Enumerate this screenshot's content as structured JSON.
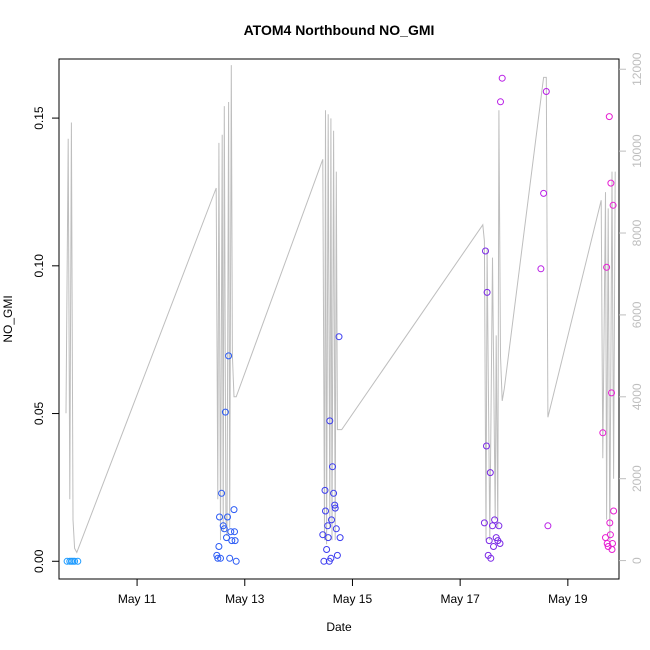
{
  "chart_data": {
    "type": "scatter",
    "title": "ATOM4 Northbound NO_GMI",
    "xlabel": "Date",
    "ylabel": "NO_GMI",
    "x_ticks": [
      "May 11",
      "May 13",
      "May 15",
      "May 17",
      "May 19"
    ],
    "y_ticks": [
      "0.00",
      "0.05",
      "0.10",
      "0.15"
    ],
    "y2_ticks": [
      "0",
      "2000",
      "4000",
      "6000",
      "8000",
      "10000",
      "12000"
    ],
    "xlim_days": [
      9.55,
      19.95
    ],
    "ylim": [
      -0.006,
      0.17
    ],
    "y2lim": [
      -450,
      12250
    ],
    "colors": {
      "altitude_line": "#bebebe",
      "right_axis": "#bebebe",
      "axis": "#000000"
    },
    "points": [
      {
        "x": 9.7,
        "y": 0.0,
        "c": "#1e9bff"
      },
      {
        "x": 9.75,
        "y": 0.0,
        "c": "#1e9bff"
      },
      {
        "x": 9.78,
        "y": 0.0,
        "c": "#1e9bff"
      },
      {
        "x": 9.81,
        "y": 0.0,
        "c": "#1e9bff"
      },
      {
        "x": 9.84,
        "y": 0.0,
        "c": "#1e9bff"
      },
      {
        "x": 9.9,
        "y": 0.0,
        "c": "#1e9bff"
      },
      {
        "x": 12.48,
        "y": 0.002,
        "c": "#2a5af5"
      },
      {
        "x": 12.5,
        "y": 0.001,
        "c": "#2a5af5"
      },
      {
        "x": 12.52,
        "y": 0.005,
        "c": "#2a5af5"
      },
      {
        "x": 12.53,
        "y": 0.015,
        "c": "#2a5af5"
      },
      {
        "x": 12.55,
        "y": 0.001,
        "c": "#2a5af5"
      },
      {
        "x": 12.57,
        "y": 0.023,
        "c": "#2a5af5"
      },
      {
        "x": 12.6,
        "y": 0.012,
        "c": "#2a5af5"
      },
      {
        "x": 12.62,
        "y": 0.011,
        "c": "#2a5af5"
      },
      {
        "x": 12.64,
        "y": 0.0505,
        "c": "#2a5af5"
      },
      {
        "x": 12.66,
        "y": 0.008,
        "c": "#2a5af5"
      },
      {
        "x": 12.68,
        "y": 0.015,
        "c": "#2a5af5"
      },
      {
        "x": 12.7,
        "y": 0.0695,
        "c": "#2a5af5"
      },
      {
        "x": 12.72,
        "y": 0.001,
        "c": "#2a5af5"
      },
      {
        "x": 12.74,
        "y": 0.01,
        "c": "#2a5af5"
      },
      {
        "x": 12.76,
        "y": 0.007,
        "c": "#2a5af5"
      },
      {
        "x": 12.8,
        "y": 0.0175,
        "c": "#2a5af5"
      },
      {
        "x": 12.81,
        "y": 0.01,
        "c": "#2a5af5"
      },
      {
        "x": 12.82,
        "y": 0.007,
        "c": "#2a5af5"
      },
      {
        "x": 12.84,
        "y": 0.0,
        "c": "#2a5af5"
      },
      {
        "x": 14.45,
        "y": 0.009,
        "c": "#3c3cf0"
      },
      {
        "x": 14.47,
        "y": 0.0,
        "c": "#3c3cf0"
      },
      {
        "x": 14.49,
        "y": 0.024,
        "c": "#3c3cf0"
      },
      {
        "x": 14.5,
        "y": 0.017,
        "c": "#3c3cf0"
      },
      {
        "x": 14.52,
        "y": 0.004,
        "c": "#3c3cf0"
      },
      {
        "x": 14.54,
        "y": 0.012,
        "c": "#3c3cf0"
      },
      {
        "x": 14.55,
        "y": 0.008,
        "c": "#3c3cf0"
      },
      {
        "x": 14.57,
        "y": 0.0,
        "c": "#3c3cf0"
      },
      {
        "x": 14.58,
        "y": 0.0475,
        "c": "#3c3cf0"
      },
      {
        "x": 14.6,
        "y": 0.001,
        "c": "#3c3cf0"
      },
      {
        "x": 14.61,
        "y": 0.014,
        "c": "#3c3cf0"
      },
      {
        "x": 14.63,
        "y": 0.032,
        "c": "#3c3cf0"
      },
      {
        "x": 14.65,
        "y": 0.023,
        "c": "#3c3cf0"
      },
      {
        "x": 14.67,
        "y": 0.019,
        "c": "#3c3cf0"
      },
      {
        "x": 14.68,
        "y": 0.018,
        "c": "#3c3cf0"
      },
      {
        "x": 14.7,
        "y": 0.011,
        "c": "#3c3cf0"
      },
      {
        "x": 14.72,
        "y": 0.002,
        "c": "#3c3cf0"
      },
      {
        "x": 14.75,
        "y": 0.076,
        "c": "#3c3cf0"
      },
      {
        "x": 14.77,
        "y": 0.008,
        "c": "#3c3cf0"
      },
      {
        "x": 17.45,
        "y": 0.013,
        "c": "#7a28e6"
      },
      {
        "x": 17.47,
        "y": 0.105,
        "c": "#7a28e6"
      },
      {
        "x": 17.49,
        "y": 0.039,
        "c": "#7a28e6"
      },
      {
        "x": 17.5,
        "y": 0.091,
        "c": "#7a28e6"
      },
      {
        "x": 17.52,
        "y": 0.002,
        "c": "#7a28e6"
      },
      {
        "x": 17.54,
        "y": 0.007,
        "c": "#7a28e6"
      },
      {
        "x": 17.56,
        "y": 0.03,
        "c": "#7a28e6"
      },
      {
        "x": 17.57,
        "y": 0.001,
        "c": "#7a28e6"
      },
      {
        "x": 17.6,
        "y": 0.012,
        "c": "#7a28e6"
      },
      {
        "x": 17.62,
        "y": 0.005,
        "c": "#7a28e6"
      },
      {
        "x": 17.64,
        "y": 0.014,
        "c": "#7a28e6"
      },
      {
        "x": 17.67,
        "y": 0.008,
        "c": "#7a28e6"
      },
      {
        "x": 17.7,
        "y": 0.007,
        "c": "#7a28e6"
      },
      {
        "x": 17.72,
        "y": 0.012,
        "c": "#7a28e6"
      },
      {
        "x": 17.74,
        "y": 0.006,
        "c": "#7a28e6"
      },
      {
        "x": 17.75,
        "y": 0.1555,
        "c": "#b91fe6"
      },
      {
        "x": 17.78,
        "y": 0.1635,
        "c": "#b91fe6"
      },
      {
        "x": 18.5,
        "y": 0.099,
        "c": "#b91fe6"
      },
      {
        "x": 18.55,
        "y": 0.1245,
        "c": "#b91fe6"
      },
      {
        "x": 18.6,
        "y": 0.159,
        "c": "#b91fe6"
      },
      {
        "x": 18.63,
        "y": 0.012,
        "c": "#b91fe6"
      },
      {
        "x": 19.65,
        "y": 0.0435,
        "c": "#e61ed2"
      },
      {
        "x": 19.7,
        "y": 0.008,
        "c": "#e61ed2"
      },
      {
        "x": 19.72,
        "y": 0.0995,
        "c": "#e61ed2"
      },
      {
        "x": 19.73,
        "y": 0.006,
        "c": "#e61ed2"
      },
      {
        "x": 19.75,
        "y": 0.005,
        "c": "#e61ed2"
      },
      {
        "x": 19.77,
        "y": 0.1505,
        "c": "#e61ed2"
      },
      {
        "x": 19.78,
        "y": 0.013,
        "c": "#e61ed2"
      },
      {
        "x": 19.79,
        "y": 0.009,
        "c": "#e61ed2"
      },
      {
        "x": 19.8,
        "y": 0.128,
        "c": "#e61ed2"
      },
      {
        "x": 19.81,
        "y": 0.057,
        "c": "#e61ed2"
      },
      {
        "x": 19.82,
        "y": 0.004,
        "c": "#e61ed2"
      },
      {
        "x": 19.83,
        "y": 0.006,
        "c": "#e61ed2"
      },
      {
        "x": 19.84,
        "y": 0.1205,
        "c": "#e61ed2"
      },
      {
        "x": 19.85,
        "y": 0.017,
        "c": "#e61ed2"
      }
    ],
    "altitude_line": {
      "x": [
        9.68,
        9.72,
        9.75,
        9.78,
        9.81,
        9.84,
        9.88,
        12.47,
        12.5,
        12.52,
        12.55,
        12.58,
        12.6,
        12.62,
        12.65,
        12.67,
        12.7,
        12.72,
        12.75,
        12.77,
        12.8,
        12.82,
        12.84,
        14.45,
        14.48,
        14.5,
        14.52,
        14.55,
        14.58,
        14.6,
        14.62,
        14.65,
        14.68,
        14.7,
        14.72,
        14.75,
        14.8,
        17.42,
        17.45,
        17.48,
        17.5,
        17.55,
        17.6,
        17.65,
        17.67,
        17.7,
        17.72,
        17.75,
        17.78,
        17.82,
        18.55,
        18.6,
        18.63,
        19.62,
        19.65,
        19.7,
        19.72,
        19.75,
        19.78,
        19.82,
        19.85,
        19.88
      ],
      "y": [
        3600,
        10300,
        1500,
        10700,
        1000,
        300,
        200,
        9100,
        1500,
        10200,
        500,
        10400,
        700,
        11100,
        1000,
        600,
        11200,
        800,
        12100,
        5000,
        4000,
        4000,
        4000,
        9800,
        500,
        11000,
        400,
        10900,
        800,
        10800,
        500,
        10500,
        500,
        9500,
        3200,
        3200,
        3200,
        8200,
        7800,
        500,
        7600,
        500,
        7400,
        1000,
        5500,
        800,
        11000,
        5000,
        3900,
        4200,
        11800,
        11800,
        3500,
        8800,
        2500,
        9000,
        1000,
        8600,
        500,
        9500,
        2000,
        9500
      ]
    }
  }
}
